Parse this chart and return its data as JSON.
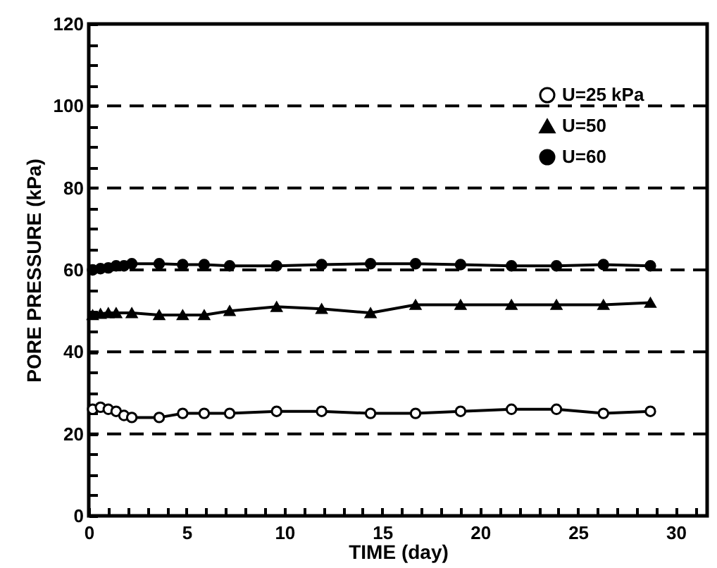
{
  "chart_data": {
    "type": "line",
    "xlabel": "TIME  (day)",
    "ylabel": "PORE PRESSURE (kPa)",
    "xlim": [
      0,
      31.6
    ],
    "ylim": [
      0,
      120
    ],
    "xticks": [
      0,
      {
        "value": 1,
        "label": null
      },
      {
        "value": 2,
        "label": null
      },
      {
        "value": 3,
        "label": null
      },
      {
        "value": 4,
        "label": null
      },
      5,
      {
        "value": 6,
        "label": null
      },
      {
        "value": 7,
        "label": null
      },
      {
        "value": 8,
        "label": null
      },
      {
        "value": 9,
        "label": null
      },
      10,
      {
        "value": 11,
        "label": null
      },
      {
        "value": 12,
        "label": null
      },
      {
        "value": 13,
        "label": null
      },
      {
        "value": 14,
        "label": null
      },
      15,
      {
        "value": 16,
        "label": null
      },
      {
        "value": 17,
        "label": null
      },
      {
        "value": 18,
        "label": null
      },
      {
        "value": 19,
        "label": null
      },
      20,
      {
        "value": 21,
        "label": null
      },
      {
        "value": 22,
        "label": null
      },
      {
        "value": 23,
        "label": null
      },
      {
        "value": 24,
        "label": null
      },
      25,
      {
        "value": 26,
        "label": null
      },
      {
        "value": 27,
        "label": null
      },
      {
        "value": 28,
        "label": null
      },
      {
        "value": 29,
        "label": null
      },
      30,
      {
        "value": 31,
        "label": null
      }
    ],
    "yticks": [
      0,
      {
        "value": 5,
        "label": null
      },
      {
        "value": 10,
        "label": null
      },
      {
        "value": 15,
        "label": null
      },
      20,
      {
        "value": 25,
        "label": null
      },
      {
        "value": 30,
        "label": null
      },
      {
        "value": 35,
        "label": null
      },
      40,
      {
        "value": 45,
        "label": null
      },
      {
        "value": 50,
        "label": null
      },
      {
        "value": 55,
        "label": null
      },
      60,
      {
        "value": 65,
        "label": null
      },
      {
        "value": 70,
        "label": null
      },
      {
        "value": 75,
        "label": null
      },
      80,
      {
        "value": 85,
        "label": null
      },
      {
        "value": 90,
        "label": null
      },
      {
        "value": 95,
        "label": null
      },
      100,
      {
        "value": 105,
        "label": null
      },
      {
        "value": 110,
        "label": null
      },
      {
        "value": 115,
        "label": null
      },
      120
    ],
    "grid": false,
    "legend": "top right",
    "line_style": "solid",
    "ref_lines": [
      {
        "axis": "y",
        "value": 20,
        "line_style": "dashed"
      },
      {
        "axis": "y",
        "value": 40,
        "line_style": "dashed"
      },
      {
        "axis": "y",
        "value": 60,
        "line_style": "dashed"
      },
      {
        "axis": "y",
        "value": 80,
        "line_style": "dashed"
      },
      {
        "axis": "y",
        "value": 100,
        "line_style": "dashed"
      }
    ],
    "series": [
      {
        "name": "U=25 kPa",
        "color": "#000000",
        "marker": "circle",
        "x": [
          0.2,
          0.6,
          1.0,
          1.4,
          1.8,
          2.2,
          3.6,
          4.8,
          5.9,
          7.2,
          9.6,
          11.9,
          14.4,
          16.7,
          19.0,
          21.6,
          23.9,
          26.3,
          28.7
        ],
        "values": [
          26,
          26.5,
          26,
          25.5,
          24.5,
          24,
          24,
          25,
          25,
          25,
          25.5,
          25.5,
          25,
          25,
          25.5,
          26,
          26,
          25,
          25.5
        ]
      },
      {
        "name": "U=50",
        "color": "#000000",
        "marker": "triangle",
        "x": [
          0.2,
          0.6,
          1.0,
          1.4,
          2.2,
          3.6,
          4.8,
          5.9,
          7.2,
          9.6,
          11.9,
          14.4,
          16.7,
          19.0,
          21.6,
          23.9,
          26.3,
          28.7
        ],
        "values": [
          49,
          49.3,
          49.5,
          49.5,
          49.5,
          49,
          49,
          49,
          50,
          51,
          50.5,
          49.5,
          51.5,
          51.5,
          51.5,
          51.5,
          51.5,
          52
        ]
      },
      {
        "name": "U=60",
        "color": "#000000",
        "marker": "circle",
        "x": [
          0.2,
          0.6,
          1.0,
          1.4,
          1.8,
          2.2,
          3.6,
          4.8,
          5.9,
          7.2,
          9.6,
          11.9,
          14.4,
          16.7,
          19.0,
          21.6,
          23.9,
          26.3,
          28.7
        ],
        "values": [
          60,
          60.3,
          60.5,
          61,
          61,
          61.5,
          61.5,
          61.3,
          61.3,
          61,
          61,
          61.3,
          61.5,
          61.5,
          61.3,
          61,
          61,
          61.3,
          61
        ]
      }
    ]
  }
}
